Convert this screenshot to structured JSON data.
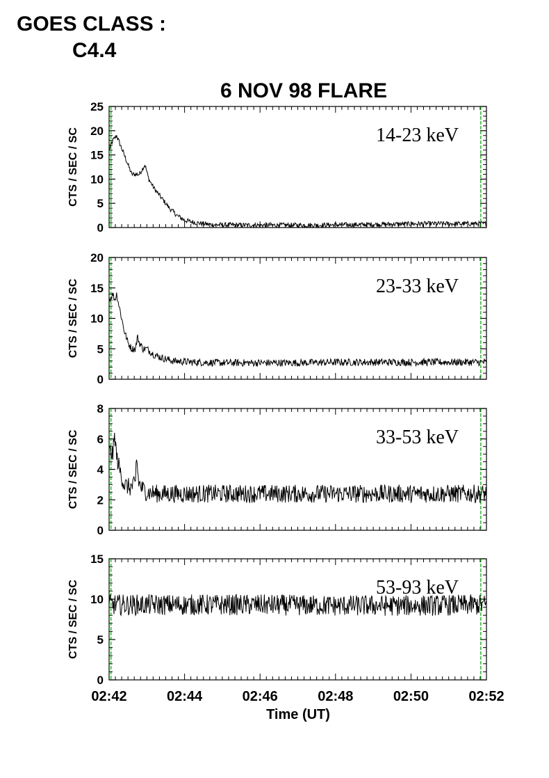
{
  "header": {
    "goes_line1": "GOES CLASS :",
    "goes_line2": "C4.4"
  },
  "chart_data": {
    "type": "line",
    "title": "6 NOV 98 FLARE",
    "xlabel": "Time (UT)",
    "x_ticks": [
      "02:42",
      "02:44",
      "02:46",
      "02:48",
      "02:50",
      "02:52"
    ],
    "xlim": [
      0,
      10
    ],
    "x_units": "minutes after 02:42 UT",
    "marker_lines_x": [
      0.05,
      9.85
    ],
    "marker_color": "#00a000",
    "line_color": "#000000",
    "panels": [
      {
        "band": "14-23 keV",
        "ylabel": "CTS / SEC / SC",
        "ylim": [
          0,
          25
        ],
        "y_ticks": [
          0,
          5,
          10,
          15,
          20,
          25
        ],
        "series": [
          {
            "t": [
              0,
              0.1,
              0.2,
              0.3,
              0.45,
              0.6,
              0.8,
              0.95,
              1.05,
              1.2,
              1.4,
              1.6,
              1.8,
              2.0,
              2.3,
              2.7,
              3.5,
              4.5,
              5.5,
              6.5,
              7.5,
              8.5,
              9.5,
              10
            ],
            "v": [
              16,
              18,
              19,
              17,
              14,
              11,
              11,
              13,
              10,
              8,
              6,
              4,
              2.5,
              1.5,
              1,
              0.6,
              0.5,
              0.5,
              0.5,
              0.6,
              0.7,
              0.8,
              0.8,
              0.8
            ],
            "noise": 0.5
          }
        ]
      },
      {
        "band": "23-33 keV",
        "ylabel": "CTS / SEC / SC",
        "ylim": [
          0,
          20
        ],
        "y_ticks": [
          0,
          5,
          10,
          15,
          20
        ],
        "series": [
          {
            "t": [
              0,
              0.1,
              0.15,
              0.2,
              0.3,
              0.4,
              0.5,
              0.6,
              0.7,
              0.75,
              0.8,
              0.9,
              1.0,
              1.2,
              1.4,
              1.7,
              2.2,
              3,
              4,
              5,
              6,
              7,
              8,
              9,
              10
            ],
            "v": [
              13,
              14,
              13,
              14,
              11,
              8,
              6,
              5,
              5,
              7,
              6,
              5,
              5,
              4,
              3.5,
              3,
              2.8,
              2.7,
              2.7,
              2.7,
              2.8,
              2.8,
              2.8,
              2.8,
              2.8
            ],
            "noise": 0.6
          }
        ]
      },
      {
        "band": "33-53 keV",
        "ylabel": "CTS / SEC / SC",
        "ylim": [
          0,
          8
        ],
        "y_ticks": [
          0,
          2,
          4,
          6,
          8
        ],
        "series": [
          {
            "t": [
              0,
              0.1,
              0.15,
              0.2,
              0.3,
              0.4,
              0.55,
              0.7,
              0.72,
              0.78,
              0.85,
              1.0,
              1.3,
              2,
              3,
              4,
              5,
              6,
              7,
              8,
              9,
              10
            ],
            "v": [
              5.2,
              5,
              6.3,
              4.8,
              3.8,
              3.0,
              2.8,
              3.0,
              5.0,
              3.2,
              2.8,
              2.5,
              2.4,
              2.4,
              2.4,
              2.4,
              2.4,
              2.4,
              2.4,
              2.4,
              2.4,
              2.4
            ],
            "noise": 0.6
          }
        ]
      },
      {
        "band": "53-93 keV",
        "ylabel": "CTS / SEC / SC",
        "ylim": [
          0,
          15
        ],
        "y_ticks": [
          0,
          5,
          10,
          15
        ],
        "series": [
          {
            "t": [
              0,
              2,
              4,
              6,
              8,
              10
            ],
            "v": [
              9.3,
              9.3,
              9.3,
              9.2,
              9.2,
              9.3
            ],
            "noise": 1.3
          }
        ]
      }
    ]
  }
}
